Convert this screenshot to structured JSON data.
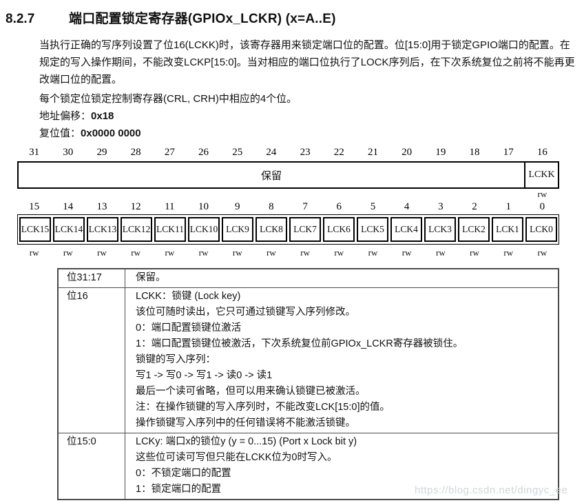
{
  "page": {
    "section_number": "8.2.7",
    "section_title": "端口配置锁定寄存器(GPIOx_LCKR) (x=A..E)",
    "paragraph1": "当执行正确的写序列设置了位16(LCKK)时，该寄存器用来锁定端口位的配置。位[15:0]用于锁定GPIO端口的配置。在规定的写入操作期间，不能改变LCKP[15:0]。当对相应的端口位执行了LOCK序列后，在下次系统复位之前将不能再更改端口位的配置。",
    "paragraph2": "每个锁定位锁定控制寄存器(CRL, CRH)中相应的4个位。",
    "address_offset_label": "地址偏移：",
    "address_offset_value": "0x18",
    "reset_value_label": "复位值：",
    "reset_value_value": "0x0000 0000"
  },
  "register": {
    "high_bits": [
      "31",
      "30",
      "29",
      "28",
      "27",
      "26",
      "25",
      "24",
      "23",
      "22",
      "21",
      "20",
      "19",
      "18",
      "17",
      "16"
    ],
    "high_reserved_label": "保留",
    "high_lckk_label": "LCKK",
    "high_access": "rw",
    "low_bits": [
      "15",
      "14",
      "13",
      "12",
      "11",
      "10",
      "9",
      "8",
      "7",
      "6",
      "5",
      "4",
      "3",
      "2",
      "1",
      "0"
    ],
    "low_cells": [
      "LCK15",
      "LCK14",
      "LCK13",
      "LCK12",
      "LCK11",
      "LCK10",
      "LCK9",
      "LCK8",
      "LCK7",
      "LCK6",
      "LCK5",
      "LCK4",
      "LCK3",
      "LCK2",
      "LCK1",
      "LCK0"
    ],
    "low_access": [
      "rw",
      "rw",
      "rw",
      "rw",
      "rw",
      "rw",
      "rw",
      "rw",
      "rw",
      "rw",
      "rw",
      "rw",
      "rw",
      "rw",
      "rw",
      "rw"
    ]
  },
  "table": {
    "rows": [
      {
        "bits": "位31:17",
        "lines": [
          "保留。"
        ]
      },
      {
        "bits": "位16",
        "lines": [
          "LCKK：锁键 (Lock key)",
          "该位可随时读出，它只可通过锁键写入序列修改。",
          "0：端口配置锁键位激活",
          "1：端口配置锁键位被激活，下次系统复位前GPIOx_LCKR寄存器被锁住。",
          "锁键的写入序列：",
          "写1 -> 写0 -> 写1 -> 读0 -> 读1",
          "最后一个读可省略，但可以用来确认锁键已被激活。",
          "注：在操作锁键的写入序列时，不能改变LCK[15:0]的值。",
          "操作锁键写入序列中的任何错误将不能激活锁键。"
        ]
      },
      {
        "bits": "位15:0",
        "lines": [
          "LCKy: 端口x的锁位y (y = 0...15) (Port x Lock bit y)",
          "这些位可读可写但只能在LCKK位为0时写入。",
          "0：不锁定端口的配置",
          "1：锁定端口的配置"
        ]
      }
    ]
  },
  "watermark": "https://blog.csdn.net/dingyc_ee"
}
